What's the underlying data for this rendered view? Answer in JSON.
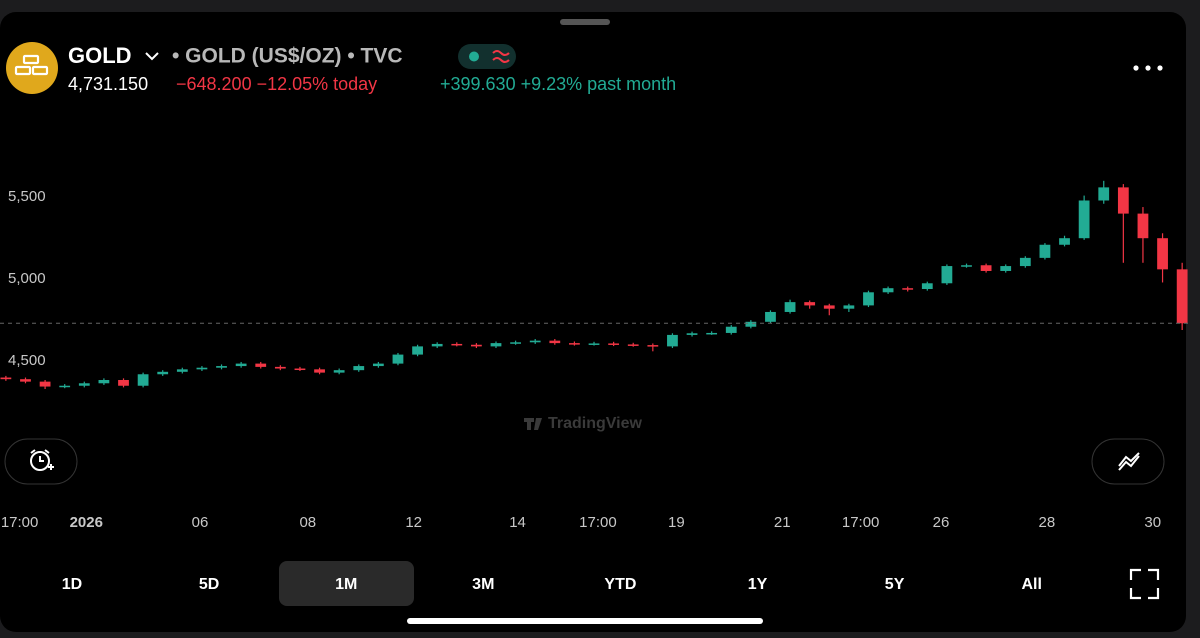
{
  "header": {
    "symbol": "GOLD",
    "description": "• GOLD (US$/OZ) • TVC",
    "price": "4,731.150",
    "change_today": "−648.200 −12.05% today",
    "change_month": "+399.630 +9.23% past month"
  },
  "watermark": "TradingView",
  "ranges": [
    "1D",
    "5D",
    "1M",
    "3M",
    "YTD",
    "1Y",
    "5Y",
    "All"
  ],
  "chart_data": {
    "type": "candlestick",
    "up_color": "#22ab94",
    "down_color": "#f23645",
    "open": [
      4400,
      4390,
      4375,
      4345,
      4350,
      4365,
      4385,
      4350,
      4420,
      4435,
      4450,
      4460,
      4470,
      4485,
      4465,
      4455,
      4450,
      4430,
      4445,
      4470,
      4485,
      4540,
      4590,
      4605,
      4600,
      4590,
      4610,
      4615,
      4625,
      4610,
      4605,
      4608,
      4602,
      4598,
      4590,
      4660,
      4670,
      4672,
      4710,
      4740,
      4800,
      4860,
      4840,
      4820,
      4840,
      4920,
      4945,
      4940,
      4975,
      5080,
      5085,
      5050,
      5080,
      5130,
      5210,
      5250,
      5480,
      5560,
      5400,
      5250,
      5060
    ],
    "high": [
      4410,
      4400,
      4385,
      4360,
      4375,
      4395,
      4395,
      4430,
      4445,
      4460,
      4470,
      4480,
      4495,
      4495,
      4475,
      4465,
      4460,
      4455,
      4480,
      4495,
      4550,
      4600,
      4615,
      4615,
      4610,
      4620,
      4625,
      4635,
      4635,
      4620,
      4618,
      4618,
      4612,
      4608,
      4670,
      4680,
      4682,
      4720,
      4750,
      4810,
      4875,
      4870,
      4850,
      4850,
      4930,
      4955,
      4955,
      4985,
      5090,
      5095,
      5095,
      5090,
      5140,
      5220,
      5265,
      5510,
      5600,
      5580,
      5440,
      5280,
      5100
    ],
    "low": [
      4380,
      4365,
      4330,
      4335,
      4340,
      4355,
      4340,
      4340,
      4410,
      4425,
      4440,
      4450,
      4460,
      4455,
      4445,
      4440,
      4420,
      4420,
      4435,
      4460,
      4475,
      4530,
      4580,
      4590,
      4580,
      4580,
      4600,
      4605,
      4600,
      4595,
      4595,
      4592,
      4588,
      4560,
      4580,
      4650,
      4660,
      4662,
      4700,
      4730,
      4790,
      4820,
      4780,
      4800,
      4830,
      4910,
      4925,
      4930,
      4965,
      5070,
      5040,
      5040,
      5070,
      5120,
      5200,
      5240,
      5460,
      5100,
      5100,
      4980,
      4690
    ],
    "close": [
      4390,
      4375,
      4345,
      4350,
      4365,
      4385,
      4350,
      4420,
      4435,
      4450,
      4460,
      4470,
      4485,
      4465,
      4455,
      4450,
      4430,
      4445,
      4470,
      4485,
      4540,
      4590,
      4605,
      4600,
      4590,
      4610,
      4615,
      4625,
      4610,
      4605,
      4608,
      4602,
      4598,
      4590,
      4660,
      4670,
      4672,
      4710,
      4740,
      4800,
      4860,
      4840,
      4820,
      4840,
      4920,
      4945,
      4940,
      4975,
      5080,
      5085,
      5050,
      5080,
      5130,
      5210,
      5250,
      5480,
      5560,
      5400,
      5250,
      5060,
      4731.15
    ],
    "ylim": [
      4080,
      5910
    ],
    "yticks": [
      {
        "value": 4500,
        "label": "4,500"
      },
      {
        "value": 5000,
        "label": "5,000"
      },
      {
        "value": 5500,
        "label": "5,500"
      }
    ],
    "xlim": [
      -0.3,
      60.4
    ],
    "xticks": [
      {
        "value": 0.7,
        "label": "17:00"
      },
      {
        "value": 4.1,
        "label": "2026"
      },
      {
        "value": 9.9,
        "label": "06"
      },
      {
        "value": 15.4,
        "label": "08"
      },
      {
        "value": 20.8,
        "label": "12"
      },
      {
        "value": 26.1,
        "label": "14"
      },
      {
        "value": 30.2,
        "label": "17:00"
      },
      {
        "value": 34.2,
        "label": "19"
      },
      {
        "value": 39.6,
        "label": "21"
      },
      {
        "value": 43.6,
        "label": "17:00"
      },
      {
        "value": 47.7,
        "label": "26"
      },
      {
        "value": 53.1,
        "label": "28"
      },
      {
        "value": 58.5,
        "label": "30"
      }
    ]
  }
}
